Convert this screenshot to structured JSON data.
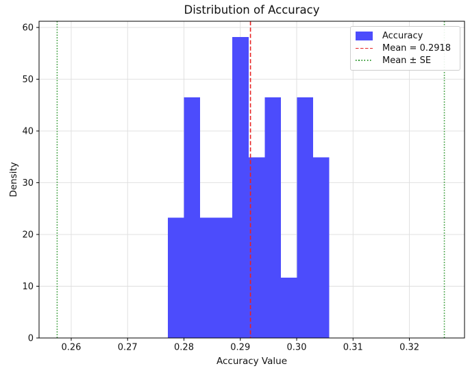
{
  "chart_data": {
    "type": "bar",
    "subtype": "histogram",
    "title": "Distribution of Accuracy",
    "xlabel": "Accuracy Value",
    "ylabel": "Density",
    "bin_edges": [
      0.27714,
      0.28001,
      0.28287,
      0.28573,
      0.2886,
      0.29146,
      0.29432,
      0.29719,
      0.30005,
      0.30291,
      0.30578
    ],
    "densities": [
      23.26,
      46.51,
      23.26,
      23.26,
      58.14,
      34.88,
      46.51,
      11.63,
      46.51,
      34.88
    ],
    "mean": 0.2918,
    "mean_minus_se": 0.2575,
    "mean_plus_se": 0.3262,
    "x_ticks": [
      0.26,
      0.27,
      0.28,
      0.29,
      0.3,
      0.31,
      0.32
    ],
    "x_tick_labels": [
      "0.26",
      "0.27",
      "0.28",
      "0.29",
      "0.30",
      "0.31",
      "0.32"
    ],
    "y_ticks": [
      0,
      10,
      20,
      30,
      40,
      50,
      60
    ],
    "y_tick_labels": [
      "0",
      "10",
      "20",
      "30",
      "40",
      "50",
      "60"
    ],
    "xlim": [
      0.25429,
      0.32978
    ],
    "ylim": [
      0,
      61.2
    ],
    "grid": true,
    "legend_position": "upper right",
    "legend": {
      "accuracy_label": "Accuracy",
      "mean_label": "Mean = 0.2918",
      "se_label": "Mean ± SE"
    },
    "colors": {
      "bar": "#4c4cfc",
      "mean_line": "#e82222",
      "se_line": "#339933",
      "grid": "#dedede",
      "spine": "#000000",
      "text": "#111111"
    }
  }
}
